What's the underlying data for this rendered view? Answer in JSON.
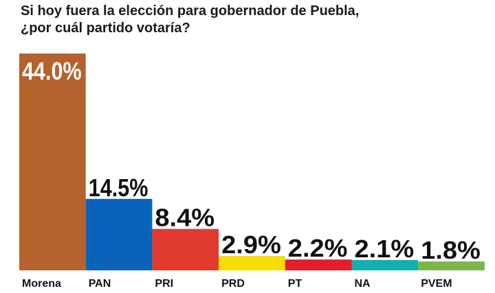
{
  "chart_data": {
    "type": "bar",
    "title_line1": "Si hoy fuera la elección para gobernador de Puebla,",
    "title_line2": "¿por cuál partido votaría?",
    "categories": [
      "Morena",
      "PAN",
      "PRI",
      "PRD",
      "PT",
      "NA",
      "PVEM"
    ],
    "values": [
      44.0,
      14.5,
      8.4,
      2.9,
      2.2,
      2.1,
      1.8
    ],
    "data_labels": [
      "44.0%",
      "14.5%",
      "8.4%",
      "2.9%",
      "2.2%",
      "2.1%",
      "1.8%"
    ],
    "colors": [
      "#b5622c",
      "#0a63b8",
      "#e03a2e",
      "#f7dc05",
      "#e41e2a",
      "#10b0b0",
      "#7ab648"
    ],
    "ylim": [
      0,
      44
    ],
    "grid": false,
    "legend": "none"
  }
}
